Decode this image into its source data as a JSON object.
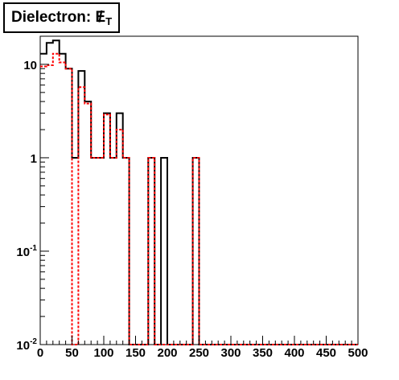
{
  "chart_data": {
    "type": "line",
    "title_prefix": "Dielectron: ",
    "title_symbol": "E",
    "title_subscript": "T",
    "xlabel": "",
    "ylabel": "",
    "xlim": [
      0,
      500
    ],
    "ylim": [
      0.01,
      20
    ],
    "y_scale": "log",
    "bin_width": 10,
    "grid": false,
    "x_ticks": [
      0,
      50,
      100,
      150,
      200,
      250,
      300,
      350,
      400,
      450,
      500
    ],
    "y_ticks": [
      {
        "value": 10,
        "base": "10",
        "exp": ""
      },
      {
        "value": 1,
        "base": "1",
        "exp": ""
      },
      {
        "value": 0.1,
        "base": "10",
        "exp": "-1"
      },
      {
        "value": 0.01,
        "base": "10",
        "exp": "-2"
      }
    ],
    "series": [
      {
        "color": "#000000",
        "style": "solid",
        "x_bins": [
          0,
          10,
          20,
          30,
          40,
          50,
          60,
          70,
          80,
          90,
          100,
          110,
          120,
          130,
          140,
          150,
          160,
          170,
          180,
          190,
          200,
          210,
          220,
          230,
          240,
          250,
          260,
          270,
          280,
          290,
          300,
          310,
          320,
          330,
          340,
          350,
          360,
          370,
          380,
          390,
          400,
          410,
          420,
          430,
          440,
          450,
          460,
          470,
          480,
          490
        ],
        "values": [
          13,
          17,
          18,
          13,
          9,
          1,
          8.5,
          4,
          1,
          1,
          3,
          1,
          3,
          1,
          0.01,
          0.01,
          0.01,
          1,
          0.01,
          1,
          0.01,
          0.01,
          0.01,
          0.01,
          1,
          0.01,
          0.01,
          0.01,
          0.01,
          0.01,
          0.01,
          0.01,
          0.01,
          0.01,
          0.01,
          0.01,
          0.01,
          0.01,
          0.01,
          0.01,
          0.01,
          0.01,
          0.01,
          0.01,
          0.01,
          0.01,
          0.01,
          0.01,
          0.01,
          0.01
        ]
      },
      {
        "color": "#ff0000",
        "style": "dashed",
        "x_bins": [
          0,
          10,
          20,
          30,
          40,
          50,
          60,
          70,
          80,
          90,
          100,
          110,
          120,
          130,
          140,
          150,
          160,
          170,
          180,
          190,
          200,
          210,
          220,
          230,
          240,
          250,
          260,
          270,
          280,
          290,
          300,
          310,
          320,
          330,
          340,
          350,
          360,
          370,
          380,
          390,
          400,
          410,
          420,
          430,
          440,
          450,
          460,
          470,
          480,
          490
        ],
        "values": [
          9.5,
          9.8,
          13,
          10.5,
          9,
          0.01,
          5.7,
          3.8,
          1,
          1,
          2.9,
          1,
          2,
          1,
          0.01,
          0.01,
          0.01,
          1,
          0.01,
          0.01,
          0.01,
          0.01,
          0.01,
          0.01,
          1,
          0.01,
          0.01,
          0.01,
          0.01,
          0.01,
          0.01,
          0.01,
          0.01,
          0.01,
          0.01,
          0.01,
          0.01,
          0.01,
          0.01,
          0.01,
          0.01,
          0.01,
          0.01,
          0.01,
          0.01,
          0.01,
          0.01,
          0.01,
          0.01,
          0.01
        ]
      }
    ]
  }
}
